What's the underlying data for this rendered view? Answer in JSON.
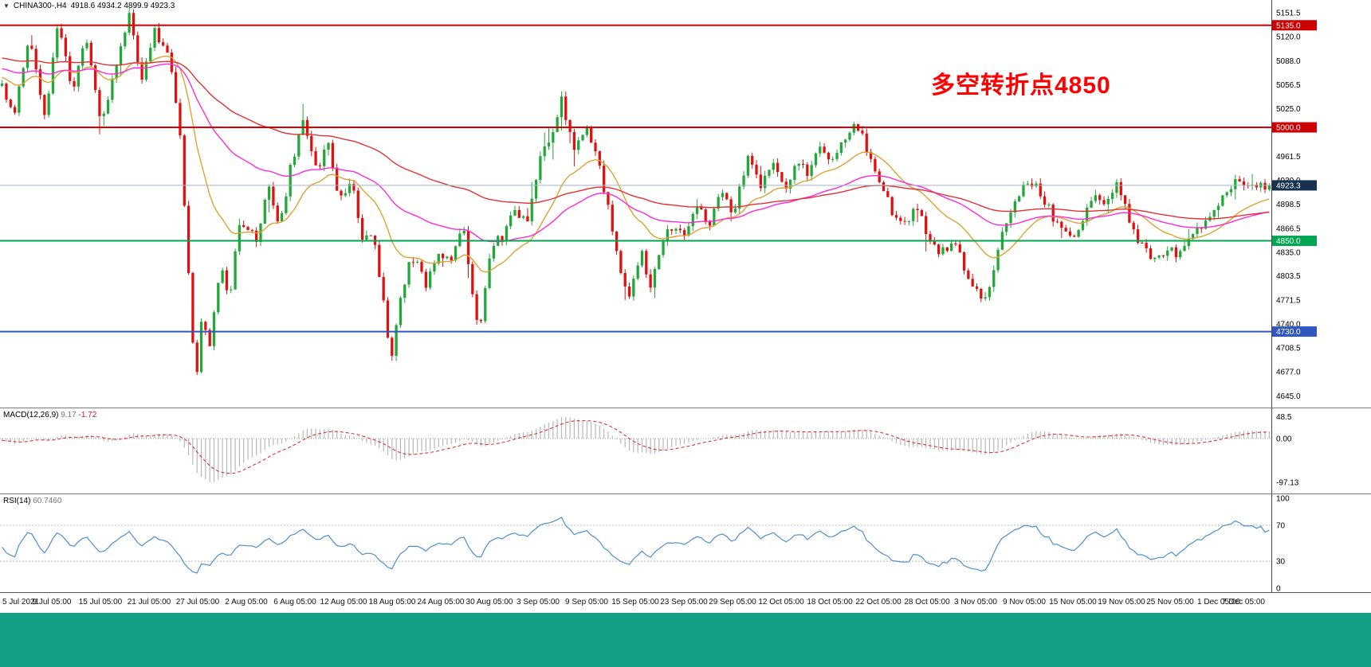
{
  "window": {
    "background": "#ffffff",
    "bottom_bar_color": "#14a085"
  },
  "header": {
    "chart_icon": "▼",
    "symbol": "CHINA300-,H4",
    "ohlc": "4918.6 4934.2 4899.9 4923.3"
  },
  "annotation": {
    "text": "多空转折点4850",
    "color": "#ff0000"
  },
  "indicators": {
    "macd": {
      "name": "MACD(12,26,9)",
      "value_main": "9.17",
      "value_signal": "-1.72",
      "hist_color": "#b8b8b8",
      "signal_color": "#e03232",
      "scale_max": 60,
      "scale_min": -115,
      "ticks": [
        {
          "label": "48.5",
          "value": 48.5
        },
        {
          "label": "0.00",
          "value": 0
        },
        {
          "label": "-97.13",
          "value": -97.13
        }
      ]
    },
    "rsi": {
      "name": "RSI(14)",
      "value": "60.7460",
      "line_color": "#4a90d2",
      "ticks": [
        {
          "label": "100",
          "value": 100
        },
        {
          "label": "70",
          "value": 70
        },
        {
          "label": "30",
          "value": 30
        },
        {
          "label": "0",
          "value": 0
        }
      ],
      "level_lines": [
        70,
        30
      ]
    }
  },
  "chart_data": {
    "type": "candlestick",
    "title": "CHINA300-,H4",
    "ohlc_current": {
      "open": 4918.6,
      "high": 4934.2,
      "low": 4899.9,
      "close": 4923.3
    },
    "candle_count": 300,
    "up_color": "#22a838",
    "down_color": "#e01010",
    "price_axis": {
      "scale_min": 4638,
      "scale_max": 5160,
      "ticks": [
        "5151.5",
        "5120.0",
        "5088.0",
        "5056.5",
        "5025.0",
        "4961.5",
        "4930.0",
        "4898.5",
        "4866.5",
        "4835.0",
        "4803.5",
        "4771.5",
        "4740.0",
        "4708.5",
        "4677.0",
        "4645.0"
      ]
    },
    "levels": [
      {
        "price": 5135.0,
        "label": "5135.0",
        "color": "#dd0000",
        "width": 2,
        "box": "#cc0000"
      },
      {
        "price": 5000.0,
        "label": "5000.0",
        "color": "#dd0000",
        "width": 2,
        "box": "#cc0000"
      },
      {
        "price": 4923.3,
        "label": "4923.3",
        "color": "#9fb3c8",
        "width": 1,
        "box": "#16324f",
        "current": true
      },
      {
        "price": 4850.0,
        "label": "4850.0",
        "color": "#00a651",
        "width": 2,
        "box": "#00a651"
      },
      {
        "price": 4730.0,
        "label": "4730.0",
        "color": "#3056c0",
        "width": 2,
        "box": "#3056c0"
      }
    ],
    "moving_averages": [
      {
        "name": "ma-fast",
        "period": 20,
        "color": "#dfa232"
      },
      {
        "name": "ma-mid",
        "period": 55,
        "color": "#ff2ad4"
      },
      {
        "name": "ma-slow",
        "period": 110,
        "color": "#e03232"
      }
    ],
    "lead_in": {
      "bars": 130,
      "start": 5140,
      "end": 5062,
      "noise": 28
    },
    "price_path": [
      [
        0.0,
        5055
      ],
      [
        0.01,
        5020
      ],
      [
        0.022,
        5122
      ],
      [
        0.034,
        5012
      ],
      [
        0.044,
        5135
      ],
      [
        0.056,
        5045
      ],
      [
        0.066,
        5125
      ],
      [
        0.078,
        5005
      ],
      [
        0.09,
        5080
      ],
      [
        0.1,
        5148
      ],
      [
        0.11,
        5060
      ],
      [
        0.12,
        5128
      ],
      [
        0.132,
        5088
      ],
      [
        0.141,
        4985
      ],
      [
        0.147,
        4810
      ],
      [
        0.151,
        4700
      ],
      [
        0.154,
        4672
      ],
      [
        0.158,
        4756
      ],
      [
        0.164,
        4705
      ],
      [
        0.172,
        4820
      ],
      [
        0.179,
        4772
      ],
      [
        0.188,
        4878
      ],
      [
        0.201,
        4848
      ],
      [
        0.21,
        4928
      ],
      [
        0.219,
        4872
      ],
      [
        0.229,
        4958
      ],
      [
        0.238,
        5008
      ],
      [
        0.248,
        4940
      ],
      [
        0.257,
        4988
      ],
      [
        0.266,
        4900
      ],
      [
        0.276,
        4930
      ],
      [
        0.285,
        4842
      ],
      [
        0.292,
        4868
      ],
      [
        0.301,
        4770
      ],
      [
        0.307,
        4686
      ],
      [
        0.313,
        4762
      ],
      [
        0.32,
        4812
      ],
      [
        0.326,
        4830
      ],
      [
        0.335,
        4790
      ],
      [
        0.345,
        4840
      ],
      [
        0.354,
        4820
      ],
      [
        0.364,
        4868
      ],
      [
        0.37,
        4800
      ],
      [
        0.376,
        4728
      ],
      [
        0.386,
        4840
      ],
      [
        0.395,
        4856
      ],
      [
        0.404,
        4898
      ],
      [
        0.414,
        4870
      ],
      [
        0.423,
        4950
      ],
      [
        0.433,
        4990
      ],
      [
        0.442,
        5038
      ],
      [
        0.451,
        4968
      ],
      [
        0.461,
        5000
      ],
      [
        0.47,
        4958
      ],
      [
        0.48,
        4878
      ],
      [
        0.486,
        4820
      ],
      [
        0.495,
        4782
      ],
      [
        0.505,
        4830
      ],
      [
        0.511,
        4782
      ],
      [
        0.52,
        4850
      ],
      [
        0.53,
        4870
      ],
      [
        0.539,
        4850
      ],
      [
        0.549,
        4900
      ],
      [
        0.558,
        4870
      ],
      [
        0.567,
        4918
      ],
      [
        0.577,
        4888
      ],
      [
        0.589,
        4968
      ],
      [
        0.599,
        4920
      ],
      [
        0.608,
        4948
      ],
      [
        0.618,
        4920
      ],
      [
        0.627,
        4958
      ],
      [
        0.636,
        4938
      ],
      [
        0.646,
        4978
      ],
      [
        0.655,
        4958
      ],
      [
        0.665,
        4988
      ],
      [
        0.674,
        5008
      ],
      [
        0.683,
        4968
      ],
      [
        0.693,
        4930
      ],
      [
        0.702,
        4890
      ],
      [
        0.712,
        4868
      ],
      [
        0.721,
        4898
      ],
      [
        0.73,
        4858
      ],
      [
        0.74,
        4830
      ],
      [
        0.749,
        4850
      ],
      [
        0.759,
        4818
      ],
      [
        0.768,
        4782
      ],
      [
        0.777,
        4768
      ],
      [
        0.787,
        4848
      ],
      [
        0.796,
        4888
      ],
      [
        0.806,
        4918
      ],
      [
        0.815,
        4930
      ],
      [
        0.824,
        4898
      ],
      [
        0.834,
        4868
      ],
      [
        0.843,
        4850
      ],
      [
        0.853,
        4880
      ],
      [
        0.862,
        4918
      ],
      [
        0.871,
        4898
      ],
      [
        0.881,
        4928
      ],
      [
        0.89,
        4878
      ],
      [
        0.9,
        4840
      ],
      [
        0.909,
        4820
      ],
      [
        0.919,
        4840
      ],
      [
        0.928,
        4830
      ],
      [
        0.937,
        4850
      ],
      [
        0.947,
        4868
      ],
      [
        0.956,
        4888
      ],
      [
        0.966,
        4918
      ],
      [
        0.975,
        4933
      ],
      [
        0.984,
        4918
      ],
      [
        1.0,
        4923.3
      ]
    ],
    "x_axis": {
      "labels": [
        "5 Jul 2021",
        "9 Jul 05:00",
        "15 Jul 05:00",
        "21 Jul 05:00",
        "27 Jul 05:00",
        "2 Aug 05:00",
        "6 Aug 05:00",
        "12 Aug 05:00",
        "18 Aug 05:00",
        "24 Aug 05:00",
        "30 Aug 05:00",
        "3 Sep 05:00",
        "9 Sep 05:00",
        "15 Sep 05:00",
        "23 Sep 05:00",
        "29 Sep 05:00",
        "12 Oct 05:00",
        "18 Oct 05:00",
        "22 Oct 05:00",
        "28 Oct 05:00",
        "3 Nov 05:00",
        "9 Nov 05:00",
        "15 Nov 05:00",
        "19 Nov 05:00",
        "25 Nov 05:00",
        "1 Dec 05:00",
        "7 Dec 05:00"
      ]
    }
  }
}
